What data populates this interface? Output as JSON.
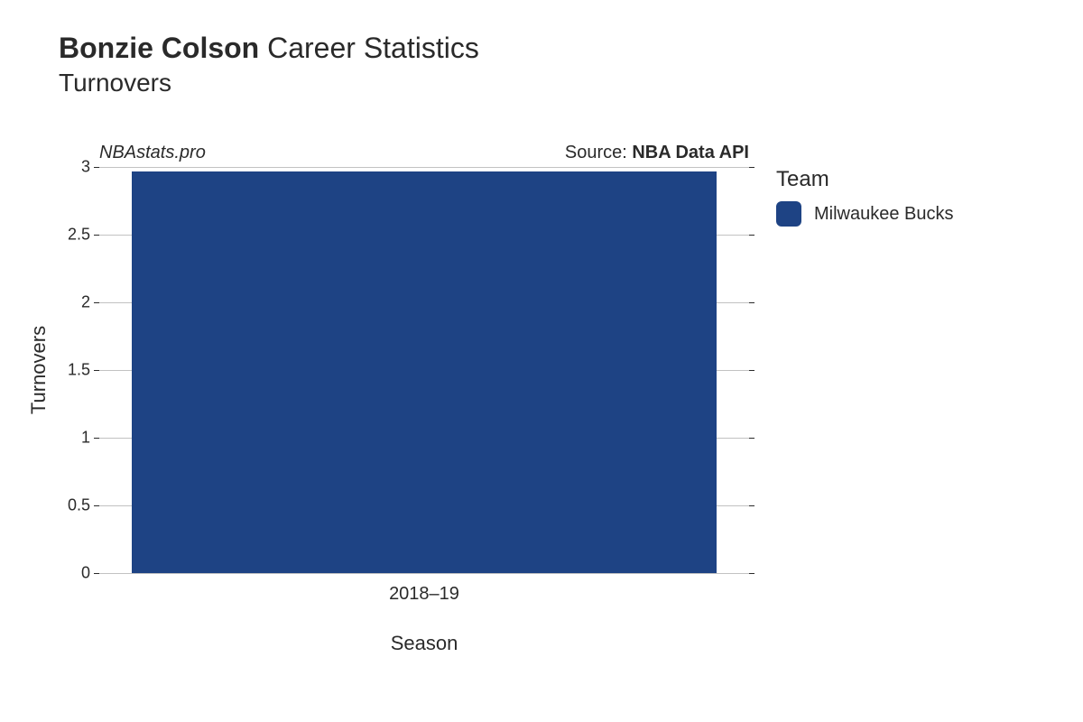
{
  "title": {
    "player_name": "Bonzie Colson",
    "suffix": "Career Statistics",
    "subtitle": "Turnovers"
  },
  "meta": {
    "site_name": "NBAstats.pro",
    "source_prefix": "Source: ",
    "source_name": "NBA Data API"
  },
  "chart": {
    "type": "bar",
    "ylabel": "Turnovers",
    "xlabel": "Season",
    "ylim": [
      0,
      3
    ],
    "ytick_step": 0.5,
    "yticks": [
      "0",
      "0.5",
      "1",
      "1.5",
      "2",
      "2.5",
      "3"
    ],
    "categories": [
      "2018–19"
    ],
    "values": [
      2.97
    ],
    "bar_colors": [
      "#1e4384"
    ],
    "bar_width": 0.9,
    "grid_color": "#999999",
    "background_color": "#ffffff",
    "label_fontsize": 22,
    "tick_fontsize": 18
  },
  "legend": {
    "title": "Team",
    "items": [
      {
        "label": "Milwaukee Bucks",
        "color": "#1e4384"
      }
    ]
  }
}
